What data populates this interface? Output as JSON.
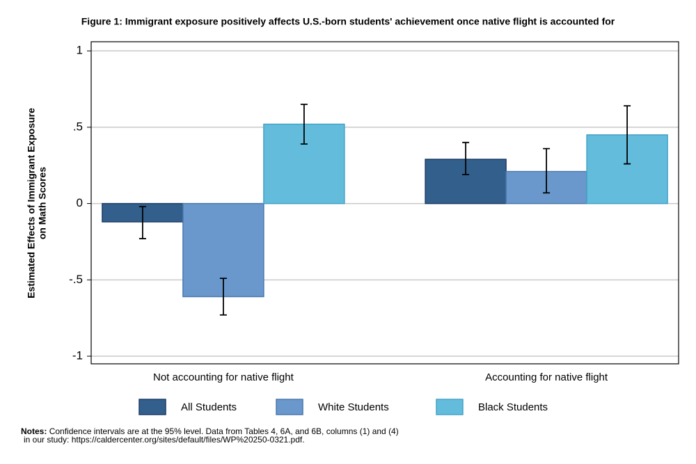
{
  "chart_data": {
    "type": "bar",
    "title": "Figure 1: Immigrant exposure positively affects U.S.-born students' achievement once native flight is accounted for",
    "y_label": [
      "Estimated Effects of Immigrant Exposure",
      "on Math Scores"
    ],
    "categories": [
      "Not accounting for native flight",
      "Accounting for native flight"
    ],
    "series": [
      {
        "name": "All Students",
        "color": "#335f8c",
        "border": "#1f3f66",
        "values": [
          -0.12,
          0.29
        ],
        "ci_low": [
          -0.23,
          0.19
        ],
        "ci_high": [
          -0.02,
          0.4
        ]
      },
      {
        "name": "White Students",
        "color": "#6a98cc",
        "border": "#4a78ad",
        "values": [
          -0.61,
          0.21
        ],
        "ci_low": [
          -0.73,
          0.07
        ],
        "ci_high": [
          -0.49,
          0.36
        ]
      },
      {
        "name": "Black Students",
        "color": "#63bcdb",
        "border": "#45a3c6",
        "values": [
          0.52,
          0.45
        ],
        "ci_low": [
          0.39,
          0.26
        ],
        "ci_high": [
          0.65,
          0.64
        ]
      }
    ],
    "ylim": [
      -1.05,
      1.06
    ],
    "yticks": [
      {
        "value": 1,
        "label": "1"
      },
      {
        "value": 0.5,
        "label": ".5"
      },
      0,
      {
        "value": -0.5,
        "label": "-.5"
      },
      {
        "value": -1,
        "label": "-1"
      }
    ],
    "grid": true,
    "notes_label": "Notes:",
    "notes": [
      "Confidence intervals are at the 95% level. Data from Tables 4, 6A, and 6B, columns (1) and (4)",
      "in our study: https://caldercenter.org/sites/default/files/WP%20250-0321.pdf."
    ]
  }
}
